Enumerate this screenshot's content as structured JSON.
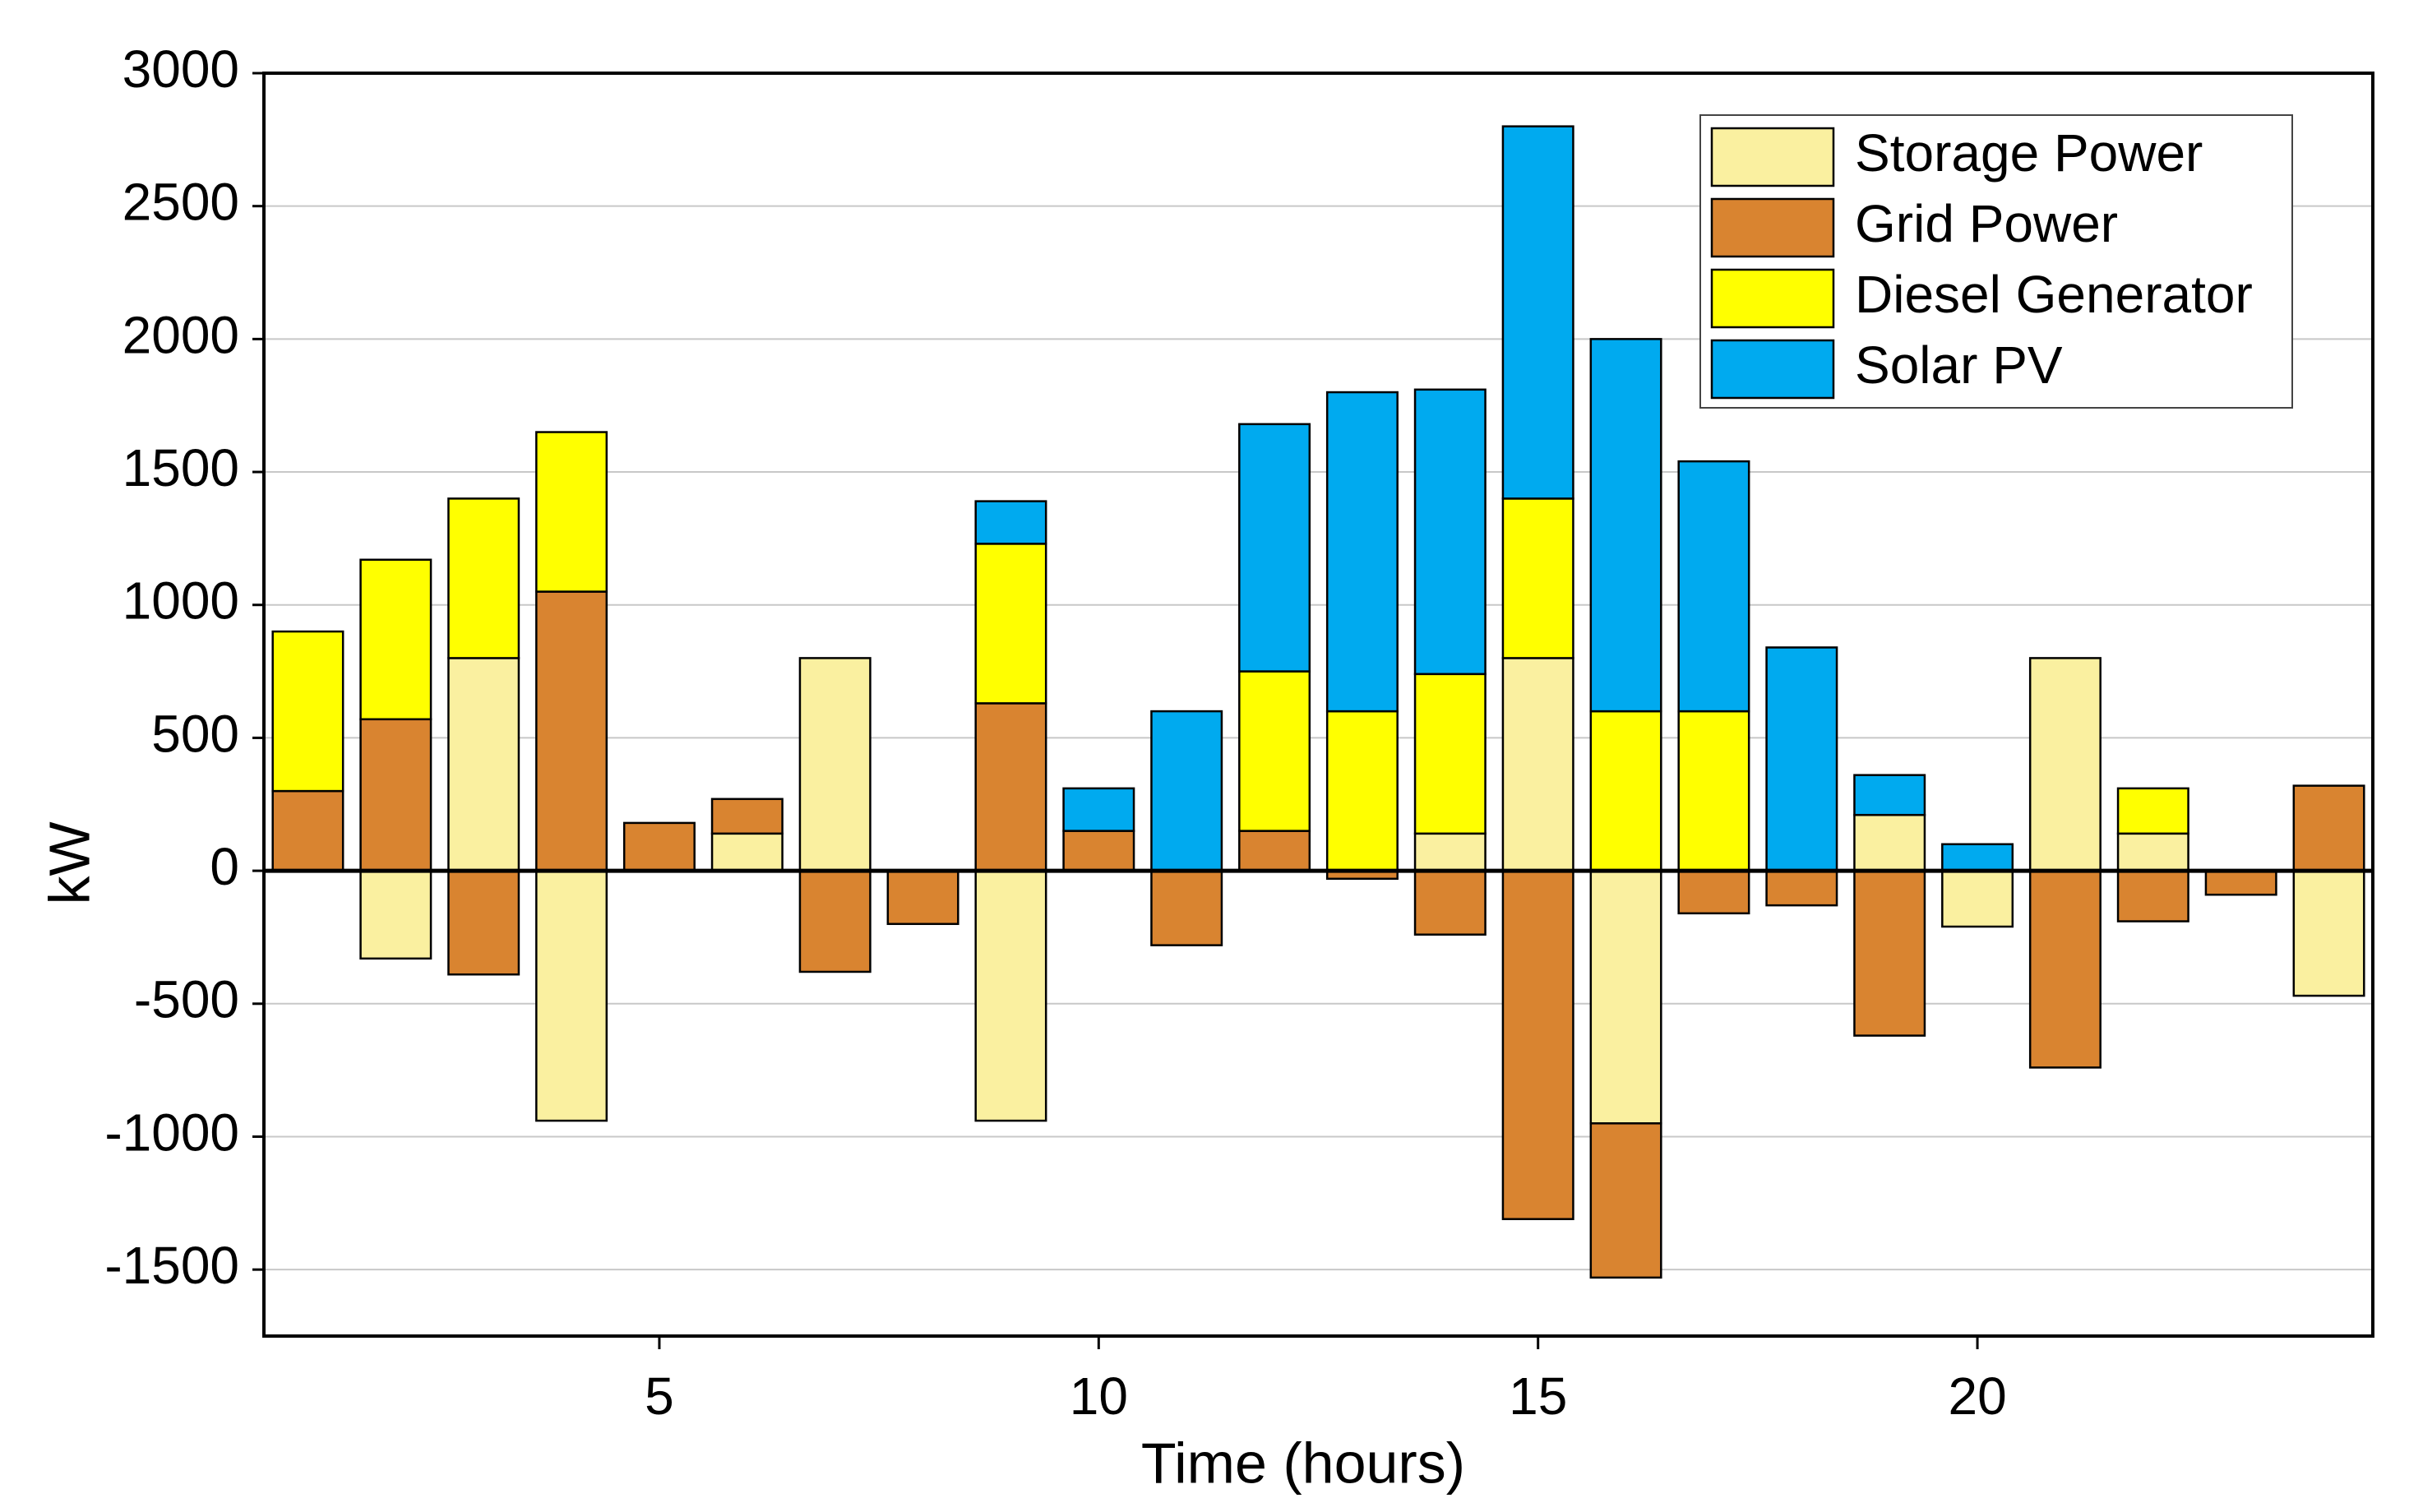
{
  "chart_data": {
    "type": "bar",
    "stacked": true,
    "x_label": "Time (hours)",
    "y_label": "kW",
    "x": [
      1,
      2,
      3,
      4,
      5,
      6,
      7,
      8,
      9,
      10,
      11,
      12,
      13,
      14,
      15,
      16,
      17,
      18,
      19,
      20,
      21,
      22,
      23,
      24
    ],
    "series": [
      {
        "name": "Storage Power",
        "color": "#faf0a0",
        "values": [
          0,
          -330,
          800,
          -940,
          0,
          140,
          800,
          0,
          -940,
          0,
          0,
          0,
          0,
          140,
          800,
          -950,
          0,
          0,
          210,
          -210,
          800,
          140,
          0,
          -470
        ]
      },
      {
        "name": "Grid Power",
        "color": "#d98430",
        "values": [
          300,
          570,
          -390,
          1050,
          180,
          130,
          -380,
          -200,
          630,
          150,
          -280,
          150,
          -30,
          -240,
          -1310,
          -580,
          -160,
          -130,
          -620,
          0,
          -740,
          -190,
          -90,
          320
        ]
      },
      {
        "name": "Diesel Generator",
        "color": "#ffff00",
        "values": [
          600,
          600,
          600,
          600,
          0,
          0,
          0,
          0,
          600,
          0,
          0,
          600,
          600,
          600,
          600,
          600,
          600,
          0,
          0,
          0,
          0,
          170,
          0,
          0
        ]
      },
      {
        "name": "Solar PV",
        "color": "#00aaef",
        "values": [
          0,
          0,
          0,
          0,
          0,
          0,
          0,
          0,
          160,
          160,
          600,
          930,
          1200,
          1070,
          1400,
          1400,
          940,
          840,
          150,
          100,
          0,
          0,
          0,
          0
        ]
      }
    ],
    "xlim": [
      0.5,
      24.5
    ],
    "xticks": [
      5,
      10,
      15,
      20
    ],
    "ylim": [
      -1750,
      3000
    ],
    "yticks": [
      -1500,
      -1000,
      -500,
      0,
      500,
      1000,
      1500,
      2000,
      2500,
      3000
    ],
    "grid": true,
    "legend_position": "upper right"
  }
}
